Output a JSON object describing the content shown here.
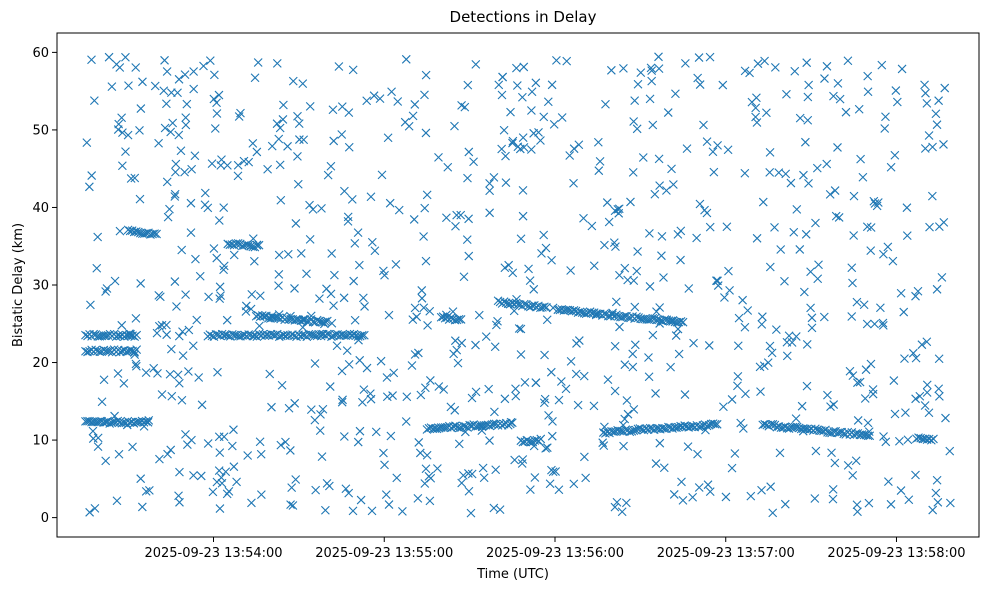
{
  "chart_data": {
    "type": "scatter",
    "title": "Detections in Delay",
    "xlabel": "Time (UTC)",
    "ylabel": "Bistatic Delay (km)",
    "marker": "x",
    "color": "#1f77b4",
    "grid": false,
    "legend": "none",
    "xlim": [
      "2025-09-23 13:53:05",
      "2025-09-23 13:58:29"
    ],
    "ylim": [
      -2.5,
      62.5
    ],
    "x_ticks": [
      "2025-09-23 13:54:00",
      "2025-09-23 13:55:00",
      "2025-09-23 13:56:00",
      "2025-09-23 13:57:00",
      "2025-09-23 13:58:00"
    ],
    "y_ticks": [
      0,
      10,
      20,
      30,
      40,
      50,
      60
    ],
    "track_segments": [
      {
        "x_start": "2025-09-23 13:53:15",
        "x_end": "2025-09-23 13:53:33",
        "y_start": 23.5,
        "y_end": 23.5
      },
      {
        "x_start": "2025-09-23 13:53:15",
        "x_end": "2025-09-23 13:53:33",
        "y_start": 21.5,
        "y_end": 21.5
      },
      {
        "x_start": "2025-09-23 13:53:15",
        "x_end": "2025-09-23 13:53:37",
        "y_start": 12.3,
        "y_end": 12.3
      },
      {
        "x_start": "2025-09-23 13:53:30",
        "x_end": "2025-09-23 13:53:40",
        "y_start": 37.0,
        "y_end": 36.5
      },
      {
        "x_start": "2025-09-23 13:53:58",
        "x_end": "2025-09-23 13:54:26",
        "y_start": 23.5,
        "y_end": 23.5
      },
      {
        "x_start": "2025-09-23 13:54:27",
        "x_end": "2025-09-23 13:54:53",
        "y_start": 23.5,
        "y_end": 23.5
      },
      {
        "x_start": "2025-09-23 13:54:05",
        "x_end": "2025-09-23 13:54:16",
        "y_start": 35.3,
        "y_end": 35.0
      },
      {
        "x_start": "2025-09-23 13:54:15",
        "x_end": "2025-09-23 13:54:40",
        "y_start": 26.0,
        "y_end": 25.2
      },
      {
        "x_start": "2025-09-23 13:55:20",
        "x_end": "2025-09-23 13:55:27",
        "y_start": 25.8,
        "y_end": 25.4
      },
      {
        "x_start": "2025-09-23 13:55:40",
        "x_end": "2025-09-23 13:55:57",
        "y_start": 27.8,
        "y_end": 27.1
      },
      {
        "x_start": "2025-09-23 13:56:01",
        "x_end": "2025-09-23 13:56:45",
        "y_start": 26.8,
        "y_end": 25.2
      },
      {
        "x_start": "2025-09-23 13:55:15",
        "x_end": "2025-09-23 13:55:45",
        "y_start": 11.5,
        "y_end": 12.1
      },
      {
        "x_start": "2025-09-23 13:55:48",
        "x_end": "2025-09-23 13:55:55",
        "y_start": 9.8,
        "y_end": 10.0
      },
      {
        "x_start": "2025-09-23 13:56:17",
        "x_end": "2025-09-23 13:56:57",
        "y_start": 11.0,
        "y_end": 12.0
      },
      {
        "x_start": "2025-09-23 13:57:13",
        "x_end": "2025-09-23 13:57:50",
        "y_start": 12.0,
        "y_end": 10.6
      },
      {
        "x_start": "2025-09-23 13:58:07",
        "x_end": "2025-09-23 13:58:13",
        "y_start": 10.2,
        "y_end": 10.0
      }
    ],
    "scattered_points": {
      "count": 900,
      "x_range": [
        "2025-09-23 13:53:15",
        "2025-09-23 13:58:19"
      ],
      "y_range": [
        0.5,
        59.5
      ]
    }
  }
}
